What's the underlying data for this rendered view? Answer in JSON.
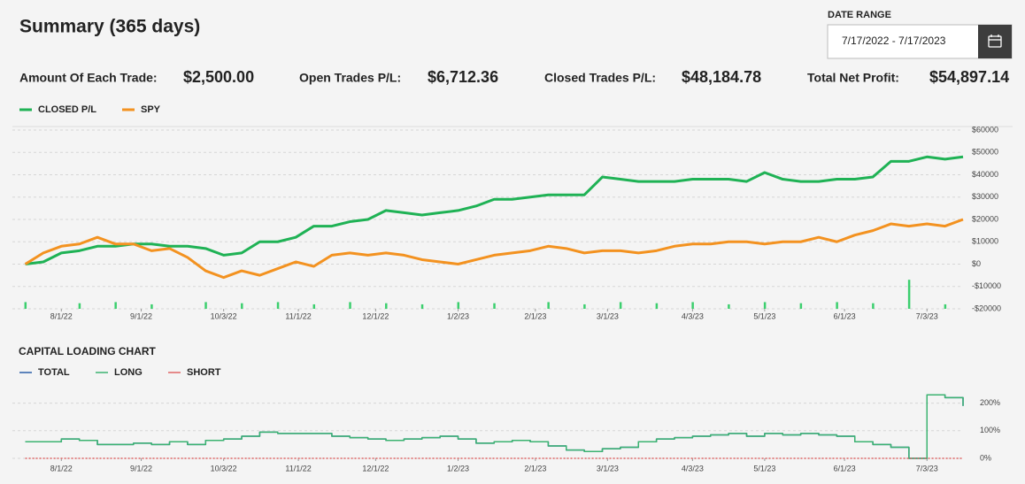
{
  "header": {
    "title": "Summary (365 days)",
    "date_range_label": "DATE RANGE",
    "date_range": "7/17/2022 - 7/17/2023"
  },
  "stats": [
    {
      "label": "Amount Of Each Trade:",
      "value": "$2,500.00"
    },
    {
      "label": "Open Trades P/L:",
      "value": "$6,712.36"
    },
    {
      "label": "Closed Trades P/L:",
      "value": "$48,184.78"
    },
    {
      "label": "Total Net Profit:",
      "value": "$54,897.14"
    }
  ],
  "chart_data": [
    {
      "type": "line",
      "x": [
        "7/18/22",
        "7/25/22",
        "8/1/22",
        "8/8/22",
        "8/15/22",
        "8/22/22",
        "8/29/22",
        "9/5/22",
        "9/12/22",
        "9/19/22",
        "9/26/22",
        "10/3/22",
        "10/10/22",
        "10/17/22",
        "10/24/22",
        "10/31/22",
        "11/7/22",
        "11/14/22",
        "11/21/22",
        "11/28/22",
        "12/5/22",
        "12/12/22",
        "12/19/22",
        "12/26/22",
        "1/2/23",
        "1/9/23",
        "1/16/23",
        "1/23/23",
        "1/30/23",
        "2/6/23",
        "2/13/23",
        "2/20/23",
        "2/27/23",
        "3/6/23",
        "3/13/23",
        "3/20/23",
        "3/27/23",
        "4/3/23",
        "4/10/23",
        "4/17/23",
        "4/24/23",
        "5/1/23",
        "5/8/23",
        "5/15/23",
        "5/22/23",
        "5/29/23",
        "6/5/23",
        "6/12/23",
        "6/19/23",
        "6/26/23",
        "7/3/23",
        "7/10/23",
        "7/17/23"
      ],
      "series": [
        {
          "name": "CLOSED P/L",
          "color": "#1fb255",
          "values": [
            0,
            1000,
            5000,
            6000,
            8000,
            8000,
            9000,
            9000,
            8000,
            8000,
            7000,
            4000,
            5000,
            10000,
            10000,
            12000,
            17000,
            17000,
            19000,
            20000,
            24000,
            23000,
            22000,
            23000,
            24000,
            26000,
            29000,
            29000,
            30000,
            31000,
            31000,
            31000,
            39000,
            38000,
            37000,
            37000,
            37000,
            38000,
            38000,
            38000,
            37000,
            41000,
            38000,
            37000,
            37000,
            38000,
            38000,
            39000,
            46000,
            46000,
            48000,
            47000,
            48000
          ]
        },
        {
          "name": "SPY",
          "color": "#f39220",
          "values": [
            0,
            5000,
            8000,
            9000,
            12000,
            9000,
            9000,
            6000,
            7000,
            3000,
            -3000,
            -6000,
            -3000,
            -5000,
            -2000,
            1000,
            -1000,
            4000,
            5000,
            4000,
            5000,
            4000,
            2000,
            1000,
            0,
            2000,
            4000,
            5000,
            6000,
            8000,
            7000,
            5000,
            6000,
            6000,
            5000,
            6000,
            8000,
            9000,
            9000,
            10000,
            10000,
            9000,
            10000,
            10000,
            12000,
            10000,
            13000,
            15000,
            18000,
            17000,
            18000,
            17000,
            20000
          ]
        }
      ],
      "bars": {
        "color": "#3ccf6e",
        "x": [
          "7/18/22",
          "8/8/22",
          "8/22/22",
          "9/5/22",
          "9/26/22",
          "10/10/22",
          "10/24/22",
          "11/7/22",
          "11/21/22",
          "12/5/22",
          "12/19/22",
          "1/2/23",
          "1/16/23",
          "2/6/23",
          "2/20/23",
          "3/6/23",
          "3/20/23",
          "4/3/23",
          "4/17/23",
          "5/1/23",
          "5/15/23",
          "5/29/23",
          "6/12/23",
          "6/26/23",
          "7/10/23"
        ],
        "values": [
          3000,
          2500,
          3000,
          2000,
          3000,
          2500,
          3000,
          2000,
          3000,
          2500,
          2000,
          3000,
          2500,
          3000,
          2000,
          3000,
          2500,
          3000,
          2000,
          3000,
          2500,
          3000,
          2500,
          13000,
          2000
        ]
      },
      "xlim": [
        "7/13/22",
        "7/17/23"
      ],
      "xticks": [
        "8/1/22",
        "9/1/22",
        "10/3/22",
        "11/1/22",
        "12/1/22",
        "1/2/23",
        "2/1/23",
        "3/1/23",
        "4/3/23",
        "5/1/23",
        "6/1/23",
        "7/3/23"
      ],
      "ylim": [
        -20000,
        60000
      ],
      "yticks": [
        {
          "value": -20000,
          "label": "-$20000"
        },
        {
          "value": -10000,
          "label": "-$10000"
        },
        {
          "value": 0,
          "label": "$0"
        },
        {
          "value": 10000,
          "label": "$10000"
        },
        {
          "value": 20000,
          "label": "$20000"
        },
        {
          "value": 30000,
          "label": "$30000"
        },
        {
          "value": 40000,
          "label": "$40000"
        },
        {
          "value": 50000,
          "label": "$50000"
        },
        {
          "value": 60000,
          "label": "$60000"
        }
      ],
      "grid": true
    },
    {
      "type": "line",
      "title": "CAPITAL LOADING CHART",
      "step": true,
      "x": [
        "7/18/22",
        "7/25/22",
        "8/1/22",
        "8/8/22",
        "8/15/22",
        "8/22/22",
        "8/29/22",
        "9/5/22",
        "9/12/22",
        "9/19/22",
        "9/26/22",
        "10/3/22",
        "10/10/22",
        "10/17/22",
        "10/24/22",
        "10/31/22",
        "11/7/22",
        "11/14/22",
        "11/21/22",
        "11/28/22",
        "12/5/22",
        "12/12/22",
        "12/19/22",
        "12/26/22",
        "1/2/23",
        "1/9/23",
        "1/16/23",
        "1/23/23",
        "1/30/23",
        "2/6/23",
        "2/13/23",
        "2/20/23",
        "2/27/23",
        "3/6/23",
        "3/13/23",
        "3/20/23",
        "3/27/23",
        "4/3/23",
        "4/10/23",
        "4/17/23",
        "4/24/23",
        "5/1/23",
        "5/8/23",
        "5/15/23",
        "5/22/23",
        "5/29/23",
        "6/5/23",
        "6/12/23",
        "6/19/23",
        "6/26/23",
        "7/3/23",
        "7/10/23",
        "7/17/23"
      ],
      "series": [
        {
          "name": "TOTAL",
          "color": "#2b5ea8",
          "values": [
            60,
            60,
            70,
            65,
            50,
            50,
            55,
            50,
            60,
            50,
            65,
            70,
            80,
            95,
            90,
            90,
            90,
            80,
            75,
            70,
            65,
            70,
            75,
            80,
            70,
            55,
            60,
            65,
            60,
            45,
            30,
            25,
            35,
            40,
            60,
            70,
            75,
            80,
            85,
            90,
            80,
            90,
            85,
            90,
            85,
            80,
            60,
            50,
            40,
            0,
            230,
            220,
            190
          ]
        },
        {
          "name": "LONG",
          "color": "#3cb371",
          "values": [
            60,
            60,
            70,
            65,
            50,
            50,
            55,
            50,
            60,
            50,
            65,
            70,
            80,
            95,
            90,
            90,
            90,
            80,
            75,
            70,
            65,
            70,
            75,
            80,
            70,
            55,
            60,
            65,
            60,
            45,
            30,
            25,
            35,
            40,
            60,
            70,
            75,
            80,
            85,
            90,
            80,
            90,
            85,
            90,
            85,
            80,
            60,
            50,
            40,
            0,
            230,
            220,
            190
          ]
        },
        {
          "name": "SHORT",
          "color": "#e06666",
          "values": [
            0,
            0,
            0,
            0,
            0,
            0,
            0,
            0,
            0,
            0,
            0,
            0,
            0,
            0,
            0,
            0,
            0,
            0,
            0,
            0,
            0,
            0,
            0,
            0,
            0,
            0,
            0,
            0,
            0,
            0,
            0,
            0,
            0,
            0,
            0,
            0,
            0,
            0,
            0,
            0,
            0,
            0,
            0,
            0,
            0,
            0,
            0,
            0,
            0,
            0,
            0,
            0,
            0
          ]
        }
      ],
      "xlim": [
        "7/13/22",
        "7/17/23"
      ],
      "xticks": [
        "8/1/22",
        "9/1/22",
        "10/3/22",
        "11/1/22",
        "12/1/22",
        "1/2/23",
        "2/1/23",
        "3/1/23",
        "4/3/23",
        "5/1/23",
        "6/1/23",
        "7/3/23"
      ],
      "ylim": [
        0,
        250
      ],
      "yticks": [
        {
          "value": 0,
          "label": "0%"
        },
        {
          "value": 100,
          "label": "100%"
        },
        {
          "value": 200,
          "label": "200%"
        }
      ],
      "grid": true
    }
  ]
}
